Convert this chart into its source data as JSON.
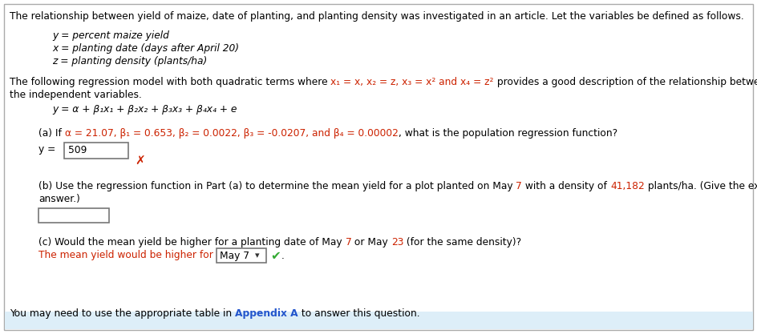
{
  "bg_color": "#ffffff",
  "border_color": "#aaaaaa",
  "text_color": "#000000",
  "red_color": "#cc2200",
  "link_color": "#2255cc",
  "green_color": "#33aa33",
  "gray_color": "#888888",
  "footer_bg": "#ddeeff",
  "title": "The relationship between yield of maize, date of planting, and planting density was investigated in an article. Let the variables be defined as follows.",
  "var1": "y = percent maize yield",
  "var2": "x = planting date (days after April 20)",
  "var3": "z = planting density (plants/ha)",
  "para2_pre": "The following regression model with both quadratic terms where ",
  "para2_red": "x₁ = x, x₂ = z, x₃ = x² and x₄ = z²",
  "para2_post": " provides a good description of the relationship between y and",
  "para2_line2": "the independent variables.",
  "model_eq": "y = α + β₁x₁ + β₂x₂ + β₃x₃ + β₄x₄ + e",
  "parta_pre": "(a) If ",
  "parta_red": "α = 21.07, β₁ = 0.653, β₂ = 0.0022, β₃ = -0.0207, and β₄ = 0.00002",
  "parta_post": ", what is the population regression function?",
  "answer_a": "509",
  "partb_pre": "(b) Use the regression function in Part (a) to determine the mean yield for a plot planted on May ",
  "partb_red1": "7",
  "partb_mid": " with a density of ",
  "partb_red2": "41,182",
  "partb_post": " plants/ha. (Give the exact",
  "partb_line2": "answer.)",
  "partc_pre": "(c) Would the mean yield be higher for a planting date of May ",
  "partc_red1": "7",
  "partc_mid": " or May ",
  "partc_red2": "23",
  "partc_post": " (for the same density)?",
  "partc_line2": "The mean yield would be higher for ",
  "partc_answer": "May 7",
  "footer_pre": "You may need to use the appropriate table in ",
  "footer_link": "Appendix A",
  "footer_post": " to answer this question."
}
